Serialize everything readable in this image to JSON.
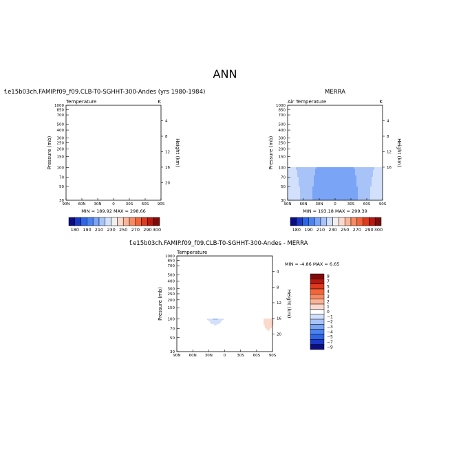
{
  "page": {
    "title": "ANN"
  },
  "panels": [
    {
      "name": "model",
      "case_title": "f.e15b03ch.FAMIP.f09_f09.CLB-T0-SGHHT-300-Andes (yrs 1980-1984)",
      "left_label": "Temperature",
      "right_label": "K",
      "minmax": "MIN = 189.92   MAX = 298.66"
    },
    {
      "name": "obs",
      "case_title": "MERRA",
      "left_label": "Air Temperature",
      "right_label": "K",
      "minmax": "MIN = 193.18   MAX = 299.39"
    },
    {
      "name": "diff",
      "case_title": "f.e15b03ch.FAMIP.f09_f09.CLB-T0-SGHHT-300-Andes - MERRA",
      "left_label": "Temperature",
      "right_label": "",
      "minmax": "MIN =   -4.86   MAX =    6.65"
    }
  ],
  "chart_data": [
    {
      "type": "heatmap",
      "title": "f.e15b03ch.FAMIP.f09_f09.CLB-T0-SGHHT-300-Andes (yrs 1980-1984)",
      "variable": "Temperature",
      "units": "K",
      "xlabel": "",
      "ylabel": "Pressure (mb)",
      "y2label": "Height (km)",
      "x_ticks": [
        "90N",
        "60N",
        "30N",
        "0",
        "30S",
        "60S",
        "90S"
      ],
      "y_ticks": [
        30,
        50,
        70,
        100,
        150,
        200,
        250,
        300,
        400,
        500,
        700,
        850,
        1000
      ],
      "y2_ticks": [
        4,
        8,
        12,
        16,
        20
      ],
      "ylim": [
        1000,
        30
      ],
      "y_scale": "log",
      "min": 189.92,
      "max": 298.66,
      "contour_levels": [
        180,
        185,
        190,
        200,
        210,
        220,
        230,
        240,
        250,
        260,
        270,
        280,
        290,
        295,
        300
      ],
      "colorbar_labels": [
        "180",
        "190",
        "210",
        "230",
        "250",
        "270",
        "290",
        "300"
      ]
    },
    {
      "type": "heatmap",
      "title": "MERRA",
      "variable": "Air Temperature",
      "units": "K",
      "xlabel": "",
      "ylabel": "Pressure (mb)",
      "y2label": "Height (km)",
      "x_ticks": [
        "90N",
        "60N",
        "30N",
        "0",
        "30S",
        "60S",
        "90S"
      ],
      "y_ticks": [
        30,
        50,
        70,
        100,
        150,
        200,
        250,
        300,
        400,
        500,
        700,
        850,
        1000
      ],
      "y2_ticks": [
        4,
        8,
        12,
        16
      ],
      "ylim": [
        1000,
        30
      ],
      "y_scale": "log",
      "data_top_pressure": 100,
      "min": 193.18,
      "max": 299.39,
      "contour_levels": [
        180,
        185,
        190,
        200,
        210,
        220,
        230,
        240,
        250,
        260,
        270,
        280,
        290,
        295,
        300
      ],
      "colorbar_labels": [
        "180",
        "190",
        "210",
        "230",
        "250",
        "270",
        "290",
        "300"
      ]
    },
    {
      "type": "heatmap",
      "title": "f.e15b03ch.FAMIP.f09_f09.CLB-T0-SGHHT-300-Andes - MERRA",
      "variable": "Temperature",
      "xlabel": "",
      "ylabel": "Pressure (mb)",
      "y2label": "Height (km)",
      "x_ticks": [
        "90N",
        "60N",
        "30N",
        "0",
        "30S",
        "60S",
        "90S"
      ],
      "y_ticks": [
        30,
        50,
        70,
        100,
        150,
        200,
        250,
        300,
        400,
        500,
        700,
        850,
        1000
      ],
      "y2_ticks": [
        4,
        8,
        12,
        16,
        20
      ],
      "ylim": [
        1000,
        30
      ],
      "y_scale": "log",
      "data_top_pressure": 100,
      "min": -4.86,
      "max": 6.65,
      "contour_levels": [
        -9,
        -7,
        -5,
        -4,
        -3,
        -2,
        -1,
        0,
        1,
        2,
        3,
        4,
        5,
        7,
        9
      ],
      "colorbar_labels": [
        "9",
        "7",
        "5",
        "4",
        "3",
        "2",
        "1",
        "0",
        "−1",
        "−2",
        "−3",
        "−4",
        "−5",
        "−7",
        "−9"
      ]
    }
  ],
  "colors": {
    "temp_palette": [
      "#0c0d82",
      "#1b38c2",
      "#2e64e6",
      "#4a83f0",
      "#7aa4f5",
      "#a8c3f8",
      "#d2e0fb",
      "#f0f0f0",
      "#fbd9cc",
      "#f9b59a",
      "#f78a63",
      "#f2653a",
      "#dd3a1e",
      "#b51910",
      "#7e0b0b"
    ],
    "diff_palette": [
      "#7e0b0b",
      "#b51910",
      "#dd3a1e",
      "#f2653a",
      "#f78a63",
      "#f9b59a",
      "#fbd9cc",
      "#ffffff",
      "#d2e0fb",
      "#a8c3f8",
      "#7aa4f5",
      "#4a83f0",
      "#2e64e6",
      "#1b38c2",
      "#0c0d82"
    ]
  }
}
